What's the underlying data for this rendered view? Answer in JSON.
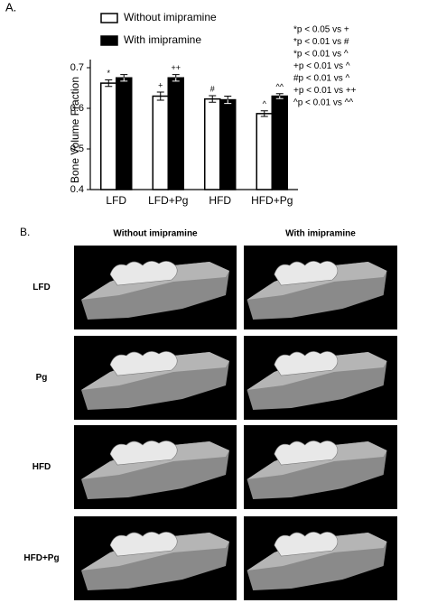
{
  "chart_data": {
    "type": "bar",
    "panel_label": "A.",
    "ylabel": "Bone Volume Fraction",
    "categories": [
      "LFD",
      "LFD+Pg",
      "HFD",
      "HFD+Pg"
    ],
    "series": [
      {
        "name": "Without imipramine",
        "color": "#ffffff",
        "values": [
          0.662,
          0.63,
          0.623,
          0.587
        ],
        "errors": [
          0.008,
          0.01,
          0.008,
          0.007
        ],
        "markers": [
          "*",
          "+",
          "#",
          "^"
        ]
      },
      {
        "name": "With imipramine",
        "color": "#000000",
        "values": [
          0.675,
          0.675,
          0.621,
          0.63
        ],
        "errors": [
          0.008,
          0.008,
          0.009,
          0.006
        ],
        "markers": [
          null,
          "++",
          null,
          "^^"
        ]
      }
    ],
    "ylim": [
      0.4,
      0.72
    ],
    "yticks": [
      0.4,
      0.5,
      0.6,
      0.7
    ],
    "notes": [
      "*p < 0.05 vs +",
      "*p < 0.01 vs #",
      "*p < 0.01 vs ^",
      "+p < 0.01 vs ^",
      "#p < 0.01 vs ^",
      "+p < 0.01 vs ++",
      "^p < 0.01 vs ^^"
    ]
  },
  "panel_b": {
    "label": "B.",
    "columns": [
      "Without imipramine",
      "With imipramine"
    ],
    "rows": [
      "LFD",
      "Pg",
      "HFD",
      "HFD+Pg"
    ]
  }
}
